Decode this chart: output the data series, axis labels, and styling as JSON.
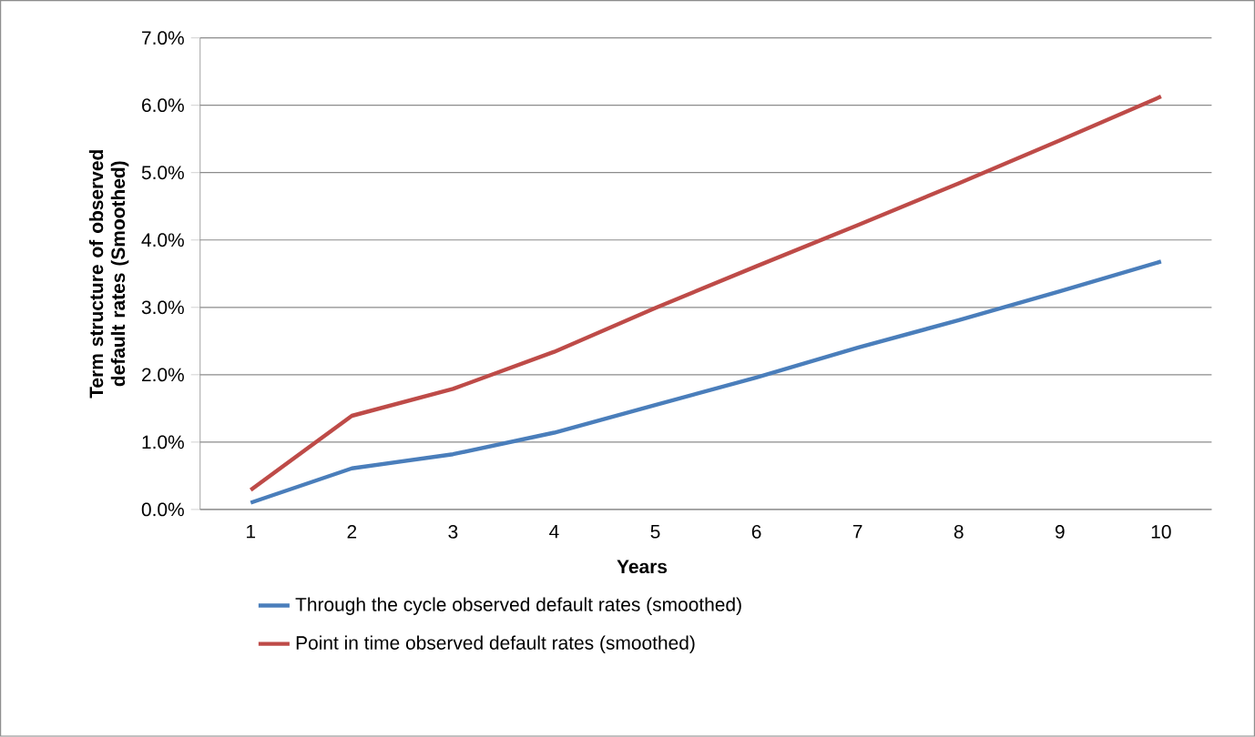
{
  "chart_data": {
    "type": "line",
    "xlabel": "Years",
    "ylabel": "Term structure of observed default rates (Smoothed)",
    "categories": [
      "1",
      "2",
      "3",
      "4",
      "5",
      "6",
      "7",
      "8",
      "9",
      "10"
    ],
    "series": [
      {
        "name": "Through the cycle observed default rates (smoothed)",
        "color": "#4a7ebb",
        "values": [
          0.1,
          0.61,
          0.82,
          1.14,
          1.55,
          1.96,
          2.4,
          2.81,
          3.24,
          3.68
        ]
      },
      {
        "name": "Point in time observed default rates (smoothed)",
        "color": "#be4b48",
        "values": [
          0.29,
          1.39,
          1.79,
          2.34,
          2.99,
          3.61,
          4.22,
          4.84,
          5.48,
          6.13
        ]
      }
    ],
    "ylim": [
      0,
      7
    ],
    "yticks": [
      {
        "value": 0,
        "label": "0.0%"
      },
      {
        "value": 1,
        "label": "1.0%"
      },
      {
        "value": 2,
        "label": "2.0%"
      },
      {
        "value": 3,
        "label": "3.0%"
      },
      {
        "value": 4,
        "label": "4.0%"
      },
      {
        "value": 5,
        "label": "5.0%"
      },
      {
        "value": 6,
        "label": "6.0%"
      },
      {
        "value": 7,
        "label": "7.0%"
      }
    ],
    "grid": "y",
    "legend": "bottom",
    "marker": "none",
    "line_style": "solid"
  }
}
